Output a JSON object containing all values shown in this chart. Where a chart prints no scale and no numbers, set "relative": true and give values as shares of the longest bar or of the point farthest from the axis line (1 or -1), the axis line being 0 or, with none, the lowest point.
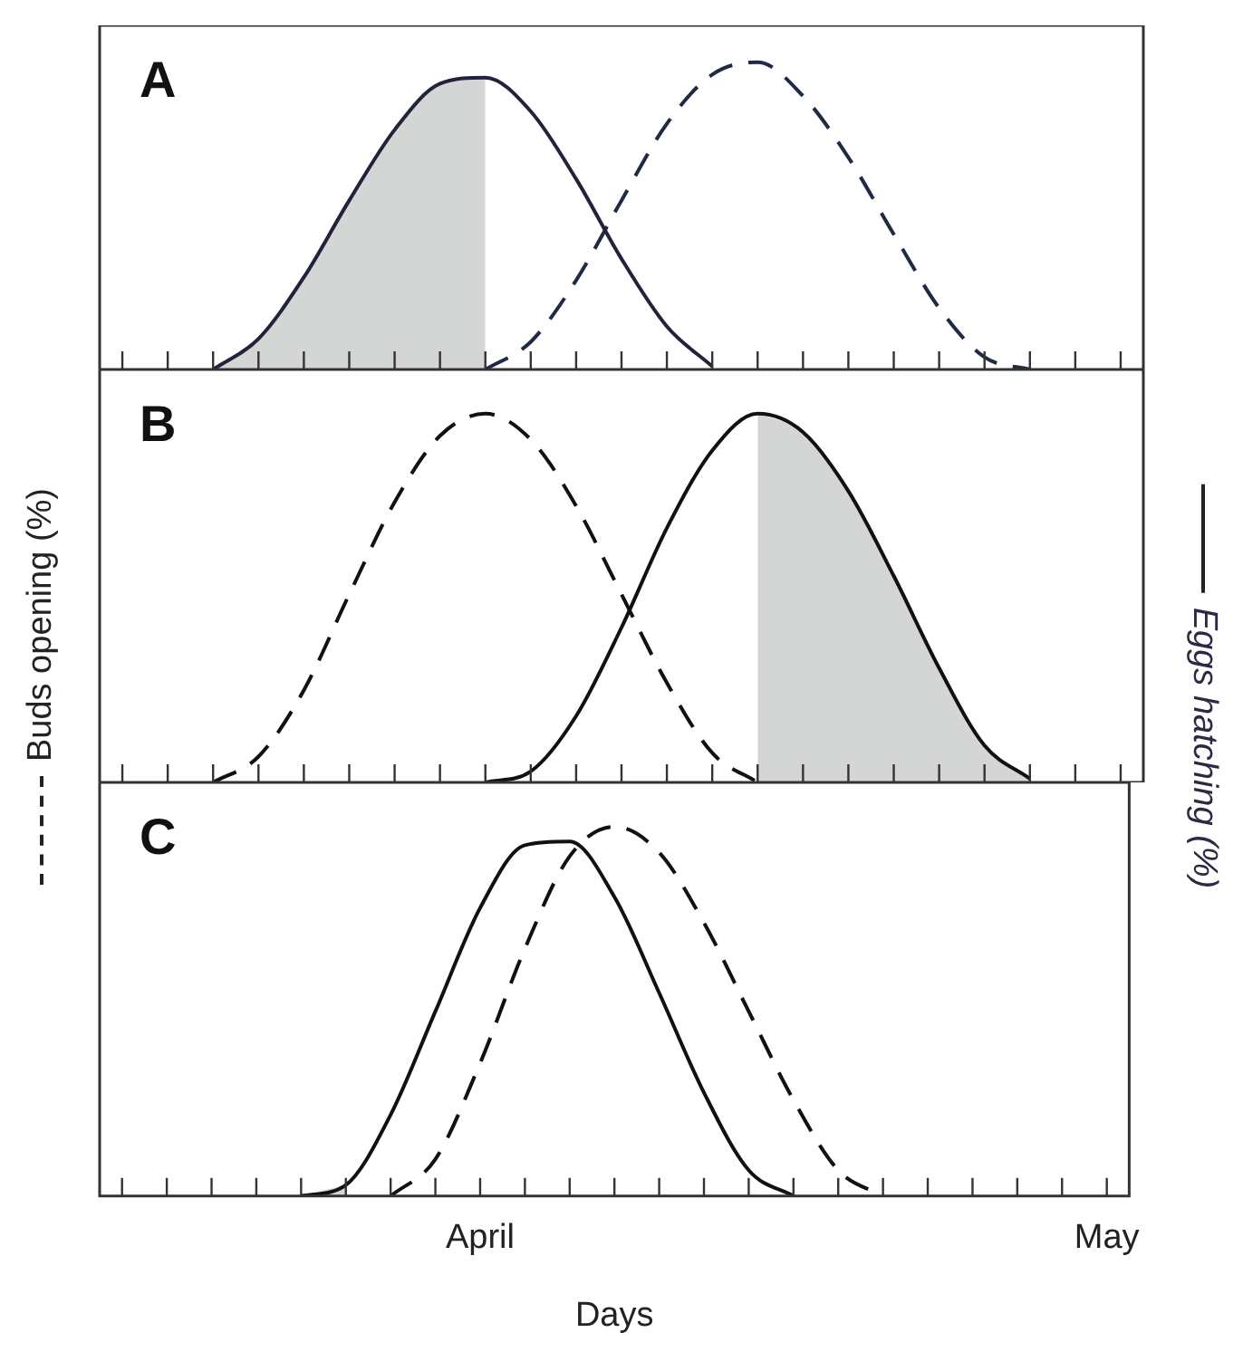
{
  "chart_data": [
    {
      "type": "line",
      "title": "A",
      "relative": true,
      "tick_labels": false,
      "categories": [
        null,
        null,
        null,
        null,
        null,
        null,
        null,
        null,
        null,
        null,
        null,
        null,
        null,
        null,
        null,
        null,
        null,
        null,
        null,
        null,
        null,
        null,
        null
      ],
      "series": [
        {
          "type": "area",
          "color": "#d4d6d6",
          "values": [
            null,
            null,
            0,
            0.1,
            0.3,
            0.55,
            0.78,
            0.93,
            0.95,
            null,
            null,
            null,
            null,
            null,
            null,
            null,
            null,
            null,
            null,
            null,
            null,
            null,
            null
          ]
        },
        {
          "color": "#22223a",
          "line_style": "solid",
          "values": [
            null,
            null,
            0,
            0.1,
            0.3,
            0.55,
            0.78,
            0.93,
            0.95,
            0.84,
            0.62,
            0.36,
            0.14,
            0.01,
            null,
            null,
            null,
            null,
            null,
            null,
            null,
            null,
            null
          ]
        },
        {
          "color": "#1f2a44",
          "line_style": "dashed",
          "values": [
            null,
            null,
            null,
            null,
            null,
            null,
            null,
            null,
            0,
            0.09,
            0.29,
            0.55,
            0.8,
            0.96,
            1,
            0.89,
            0.69,
            0.44,
            0.2,
            0.04,
            0,
            null,
            null
          ]
        }
      ]
    },
    {
      "type": "line",
      "title": "B",
      "relative": true,
      "tick_labels": false,
      "ylabel": "Buds opening (%)",
      "y2label": "Eggs hatching (%)",
      "categories": [
        null,
        null,
        null,
        null,
        null,
        null,
        null,
        null,
        null,
        null,
        null,
        null,
        null,
        null,
        null,
        null,
        null,
        null,
        null,
        null,
        null,
        null,
        null
      ],
      "series": [
        {
          "type": "area",
          "color": "#d4d6d6",
          "values": [
            null,
            null,
            null,
            null,
            null,
            null,
            null,
            null,
            null,
            null,
            null,
            null,
            null,
            null,
            1,
            0.95,
            0.79,
            0.56,
            0.31,
            0.1,
            0.01,
            null,
            null
          ]
        },
        {
          "color": "#111111",
          "line_style": "dashed",
          "values": [
            null,
            null,
            0,
            0.07,
            0.25,
            0.51,
            0.76,
            0.94,
            1,
            0.93,
            0.75,
            0.51,
            0.27,
            0.08,
            0,
            null,
            null,
            null,
            null,
            null,
            null,
            null,
            null
          ]
        },
        {
          "color": "#111111",
          "line_style": "solid",
          "values": [
            null,
            null,
            null,
            null,
            null,
            null,
            null,
            null,
            0,
            0.03,
            0.18,
            0.42,
            0.69,
            0.9,
            1,
            0.95,
            0.79,
            0.56,
            0.31,
            0.1,
            0.01,
            null,
            null
          ]
        }
      ]
    },
    {
      "type": "line",
      "title": "C",
      "relative": true,
      "tick_labels": "x",
      "xlabel": "Days",
      "categories": [
        null,
        null,
        null,
        null,
        null,
        null,
        null,
        null,
        "April",
        null,
        null,
        null,
        null,
        null,
        null,
        null,
        null,
        null,
        null,
        null,
        null,
        null,
        "May"
      ],
      "series": [
        {
          "type": "area",
          "color": "#d4d6d6",
          "values": [
            null,
            null,
            null,
            null,
            0,
            0.03,
            null,
            null,
            null,
            null,
            null,
            null,
            null,
            null,
            null,
            null,
            null,
            null,
            null,
            null,
            null,
            null,
            null
          ]
        },
        {
          "color": "#111111",
          "line_style": "solid",
          "values": [
            null,
            null,
            null,
            null,
            0,
            0.03,
            0.22,
            0.5,
            0.78,
            0.95,
            0.96,
            0.81,
            0.55,
            0.28,
            0.07,
            0,
            null,
            null,
            null,
            null,
            null,
            null,
            null
          ]
        },
        {
          "color": "#111111",
          "line_style": "dashed",
          "values": [
            null,
            null,
            null,
            null,
            null,
            null,
            0,
            0.1,
            0.36,
            0.67,
            0.92,
            1,
            0.93,
            0.74,
            0.5,
            0.26,
            0.07,
            0,
            null,
            null,
            null,
            null,
            null
          ]
        }
      ]
    }
  ]
}
